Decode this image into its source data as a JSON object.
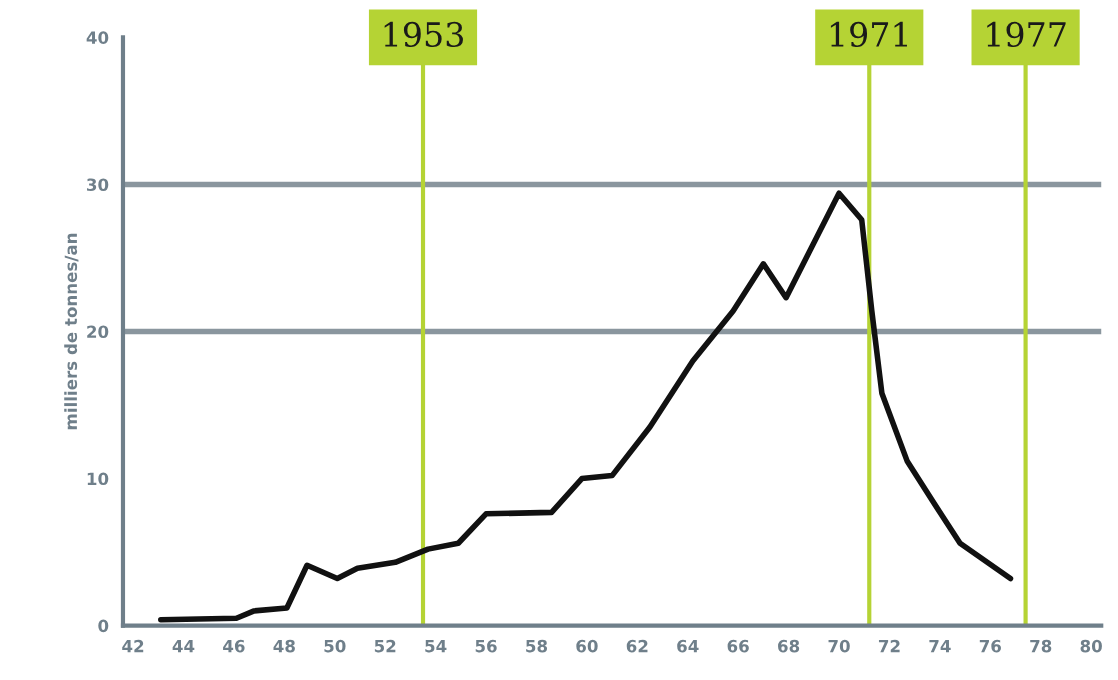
{
  "chart_data": {
    "type": "line",
    "ylabel": "milliers de tonnes/an",
    "x": [
      1943.1,
      1946.1,
      1946.8,
      1948.1,
      1948.9,
      1950.1,
      1950.9,
      1952.4,
      1953.7,
      1954.9,
      1956.0,
      1958.6,
      1959.8,
      1961.0,
      1962.5,
      1964.2,
      1965.8,
      1967.0,
      1967.9,
      1970.0,
      1970.9,
      1971.3,
      1971.7,
      1972.7,
      1973.7,
      1974.8,
      1976.8
    ],
    "series": [
      {
        "color": "#111111",
        "values": [
          0.4,
          0.5,
          1.0,
          1.2,
          4.1,
          3.2,
          3.9,
          4.3,
          5.2,
          5.6,
          7.6,
          7.7,
          10.0,
          10.2,
          13.5,
          18.0,
          21.4,
          24.6,
          22.3,
          29.4,
          27.6,
          21.4,
          15.8,
          11.2,
          8.5,
          5.6,
          3.2
        ]
      }
    ],
    "xlim": [
      1941.6,
      1980.4
    ],
    "xticks": [
      {
        "value": 1942,
        "label": "42"
      },
      {
        "value": 1944,
        "label": "44"
      },
      {
        "value": 1946,
        "label": "46"
      },
      {
        "value": 1948,
        "label": "48"
      },
      {
        "value": 1950,
        "label": "50"
      },
      {
        "value": 1952,
        "label": "52"
      },
      {
        "value": 1954,
        "label": "54"
      },
      {
        "value": 1956,
        "label": "56"
      },
      {
        "value": 1958,
        "label": "58"
      },
      {
        "value": 1960,
        "label": "60"
      },
      {
        "value": 1962,
        "label": "62"
      },
      {
        "value": 1964,
        "label": "64"
      },
      {
        "value": 1966,
        "label": "66"
      },
      {
        "value": 1968,
        "label": "68"
      },
      {
        "value": 1970,
        "label": "70"
      },
      {
        "value": 1972,
        "label": "72"
      },
      {
        "value": 1974,
        "label": "74"
      },
      {
        "value": 1976,
        "label": "76"
      },
      {
        "value": 1978,
        "label": "78"
      },
      {
        "value": 1980,
        "label": "80"
      }
    ],
    "ylim": [
      0,
      40
    ],
    "yticks": [
      0,
      10,
      20,
      30,
      40
    ],
    "ref_lines": [
      {
        "axis": "y",
        "value": 20,
        "color": "#8a969e"
      },
      {
        "axis": "y",
        "value": 30,
        "color": "#8a969e"
      },
      {
        "axis": "x",
        "value": 1953.5,
        "label": "1953",
        "color": "#b5d334"
      },
      {
        "axis": "x",
        "value": 1971.2,
        "label": "1971",
        "color": "#b5d334"
      },
      {
        "axis": "x",
        "value": 1977.4,
        "label": "1977",
        "color": "#b5d334"
      }
    ],
    "marker": "none",
    "line_style": "solid"
  }
}
